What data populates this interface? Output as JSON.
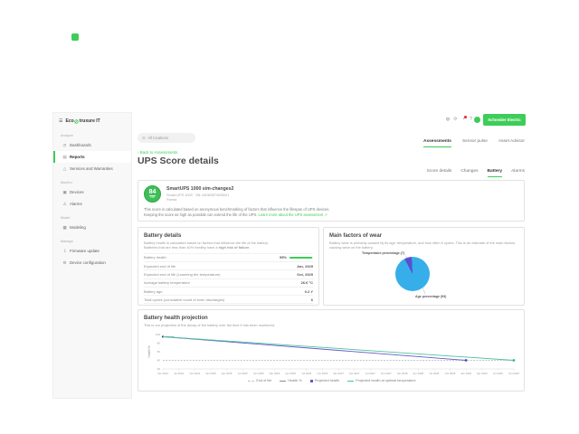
{
  "brand": {
    "logo_prefix": "Eco",
    "logo_suffix": "truxure IT",
    "schneider_logo": "Schneider Electric",
    "accent": "#3dcd58"
  },
  "header": {
    "menu_icon_glyph": "☰",
    "icons": [
      {
        "name": "globe-icon",
        "glyph": "◍"
      },
      {
        "name": "refresh-icon",
        "glyph": "⟳"
      },
      {
        "name": "notifications-icon",
        "glyph": "◔",
        "badge": true
      },
      {
        "name": "help-icon",
        "glyph": "?"
      },
      {
        "name": "settings-icon",
        "glyph": "⚙"
      }
    ],
    "search_placeholder": "All locations",
    "search_pin_glyph": "⊙"
  },
  "sidebar": {
    "sections": [
      {
        "label": "Analyze",
        "items": [
          {
            "label": "Dashboards",
            "icon": "dashboards-icon",
            "glyph": "◷",
            "active": false
          },
          {
            "label": "Reports",
            "icon": "reports-icon",
            "glyph": "▤",
            "active": true
          },
          {
            "label": "Services and Warranties",
            "icon": "services-icon",
            "glyph": "△",
            "active": false
          }
        ]
      },
      {
        "label": "Monitor",
        "items": [
          {
            "label": "Devices",
            "icon": "devices-icon",
            "glyph": "▣",
            "active": false
          },
          {
            "label": "Alarms",
            "icon": "alarms-icon",
            "glyph": "⚠",
            "active": false
          }
        ]
      },
      {
        "label": "Model",
        "items": [
          {
            "label": "Modeling",
            "icon": "modeling-icon",
            "glyph": "▦",
            "active": false
          }
        ]
      },
      {
        "label": "Manage",
        "items": [
          {
            "label": "Firmware update",
            "icon": "firmware-update-icon",
            "glyph": "⇩",
            "active": false
          },
          {
            "label": "Device configuration",
            "icon": "device-configuration-icon",
            "glyph": "⚙",
            "active": false
          }
        ]
      }
    ]
  },
  "tabs_primary": [
    {
      "label": "Assessments",
      "active": true
    },
    {
      "label": "Sensor pulse",
      "active": false
    },
    {
      "label": "Asset Advisor",
      "active": false
    }
  ],
  "page": {
    "back_link": "‹ Back to Assessments",
    "title": "UPS Score details"
  },
  "tabs_secondary": [
    {
      "label": "Score details",
      "active": false
    },
    {
      "label": "Changes",
      "active": false
    },
    {
      "label": "Battery",
      "active": true
    },
    {
      "label": "Alarms",
      "active": false
    }
  ],
  "score_card": {
    "score": "84",
    "score_max": "100",
    "device_name": "SmartUPS 1000 sim-changes2",
    "device_meta": "Smart-UPS 1000 · SN: AS0836TW05021",
    "location": "Parma",
    "description_line1": "This score is calculated based on anonymous benchmarking of factors that influence the lifespan of UPS devices.",
    "description_line2": "Keeping the score as high as possible can extend the life of the UPS.",
    "learn_more": "Learn more about the UPS assessment",
    "external_icon": "↗"
  },
  "battery_details": {
    "title": "Battery details",
    "description_line1": "Battery health is calculated based on factors that influence the life of the battery.",
    "description_line2_prefix": "Batteries that are less than 40% healthy have a ",
    "description_line2_bold": "high risk of failure.",
    "rows": [
      {
        "label": "Battery health",
        "value": "95%",
        "bar_percent": 95
      },
      {
        "label": "Expected end of life",
        "value": "Jan, 2029"
      },
      {
        "label": "Expected end of life (Lowering the temperature)",
        "value": "Oct, 2029"
      },
      {
        "label": "Average battery temperature",
        "value": "26.6 °C"
      },
      {
        "label": "Battery age",
        "value": "0.2 Y"
      },
      {
        "label": "Total cycles (cumulative count of even discharges)",
        "value": "6"
      }
    ]
  },
  "wear_card": {
    "title": "Main factors of wear",
    "description_line1": "Battery wear is primarily caused by its age, temperature, and how often it cycles. This is an estimate of the main factors",
    "description_line2": "causing wear on the battery."
  },
  "chart_data": [
    {
      "type": "pie",
      "title": "Main factors of wear",
      "labels": [
        "Age percentage (93)",
        "Temperature percentage (7)"
      ],
      "values": [
        93,
        7
      ],
      "colors": [
        "#36aee9",
        "#5a4fcf"
      ],
      "legend_position": "none"
    },
    {
      "type": "line",
      "title": "Battery health projection",
      "subtitle": "This is our projection of the decay of the battery over the time it has been monitored.",
      "ylabel": "Health %",
      "ylim": [
        20,
        100
      ],
      "yticks": [
        100,
        80,
        60,
        40,
        20
      ],
      "grid": false,
      "legend_position": "bottom",
      "xticks": [
        "Apr 2024",
        "Jul 2024",
        "Oct 2024",
        "Jan 2025",
        "Apr 2025",
        "Jul 2025",
        "Oct 2025",
        "Jan 2026",
        "Apr 2026",
        "Jul 2026",
        "Oct 2026",
        "Jan 2027",
        "Apr 2027",
        "Jul 2027",
        "Oct 2027",
        "Jan 2028",
        "Apr 2028",
        "Jul 2028",
        "Oct 2028",
        "Jan 2029",
        "Apr 2029",
        "Jul 2029",
        "Oct 2029"
      ],
      "series": [
        {
          "name": "End of life",
          "color": "#b8c0c8",
          "dashed": true,
          "legend_swatch": "dashed-line",
          "points": [
            [
              0,
              40
            ],
            [
              22,
              40
            ]
          ],
          "markers": []
        },
        {
          "name": "Health %",
          "color": "#7f8f9c",
          "dashed": false,
          "legend_swatch": "line",
          "points": [
            [
              0,
              95
            ],
            [
              0.7,
              94.3
            ]
          ],
          "markers": [
            {
              "x": 0,
              "y": 95,
              "shape": "dot",
              "color": "#2c3e50"
            }
          ]
        },
        {
          "name": "Projected health",
          "color": "#6258c4",
          "dashed": false,
          "legend_swatch": "square",
          "points": [
            [
              0,
              95
            ],
            [
              19,
              40
            ]
          ],
          "markers": [
            {
              "x": 19,
              "y": 40,
              "shape": "square",
              "color": "#4a41b0"
            }
          ]
        },
        {
          "name": "Projected health at optimal temperature",
          "color": "#4cc2a0",
          "dashed": false,
          "legend_swatch": "line",
          "points": [
            [
              0,
              95
            ],
            [
              22,
              40
            ]
          ],
          "markers": [
            {
              "x": 22,
              "y": 40,
              "shape": "square",
              "color": "#35ad8c"
            }
          ]
        }
      ]
    }
  ]
}
